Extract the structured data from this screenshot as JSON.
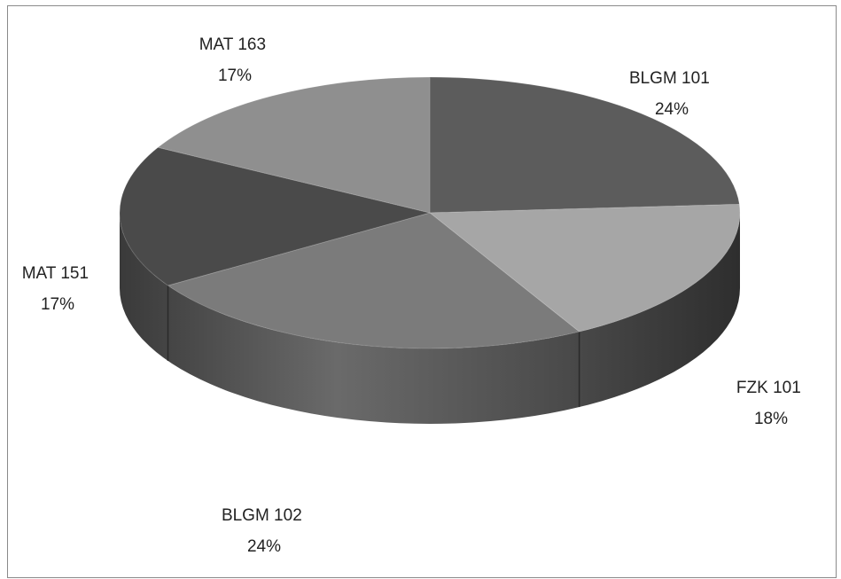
{
  "chart_data": {
    "type": "pie",
    "style": "3d",
    "legend": "none",
    "categories": [
      "BLGM 101",
      "FZK 101",
      "BLGM 102",
      "MAT 151",
      "MAT 163"
    ],
    "values": [
      24,
      18,
      24,
      17,
      17
    ],
    "labels": [
      {
        "name": "BLGM 101",
        "pct": "24%"
      },
      {
        "name": "FZK 101",
        "pct": "18%"
      },
      {
        "name": "BLGM 102",
        "pct": "24%"
      },
      {
        "name": "MAT 151",
        "pct": "17%"
      },
      {
        "name": "MAT 163",
        "pct": "17%"
      }
    ],
    "colors": [
      "#5c5c5c",
      "#a6a6a6",
      "#7b7b7b",
      "#4a4a4a",
      "#8f8f8f"
    ]
  }
}
